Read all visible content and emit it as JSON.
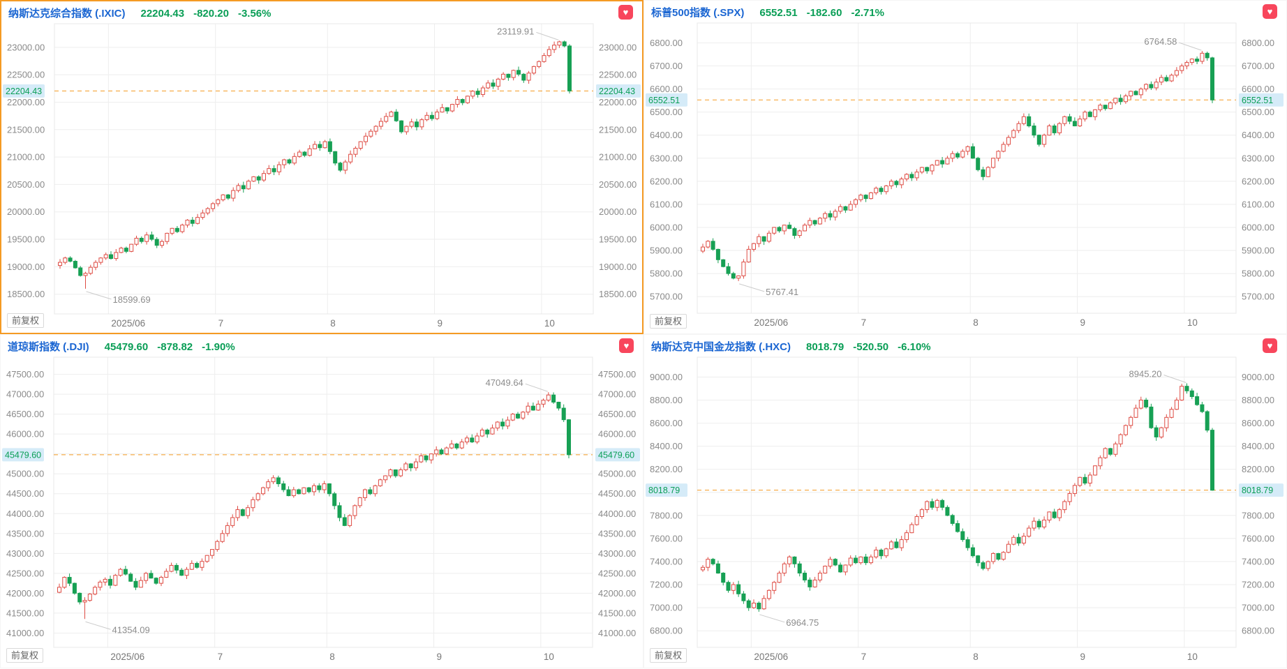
{
  "shared": {
    "adjust_label": "前复权"
  },
  "colors": {
    "title_blue": "#1B66D2",
    "value_green": "#0A9E56",
    "up_red": "#DE4B43",
    "down_green": "#17A054",
    "current_line_orange": "#F59B22",
    "current_label_bg": "#D5EBF8",
    "current_label_text": "#0A9E56",
    "heart_red": "#F8465C",
    "selected_border_orange": "#F59A23",
    "axis_text": "#8A8A8A",
    "grid_line": "#EEEEEE",
    "plot_border": "#E8E8E8",
    "annotation_text": "#8C8C8C",
    "annotation_line": "#CCCCCC",
    "month_label_text": "#777777"
  },
  "panels": [
    {
      "title": "纳斯达克综合指数 (.IXIC)",
      "price": "22204.43",
      "change": "-820.20",
      "change_pct": "-3.56%",
      "selected": true,
      "chart_data": {
        "type": "candlestick",
        "title": "纳斯达克综合指数 (.IXIC)",
        "x_labels": [
          "2025/06",
          "7",
          "8",
          "9",
          "10"
        ],
        "month_start_indices": [
          10,
          31,
          53,
          74,
          95
        ],
        "tick_min": 18500,
        "tick_max": 23000,
        "tick_step": 500,
        "y_range": [
          18140,
          23430
        ],
        "current": 22204.43,
        "high": {
          "index": 98,
          "value": 23119.91,
          "label": "23119.91"
        },
        "low": {
          "index": 5,
          "value": 18599.69,
          "label": "18599.69"
        },
        "closes": [
          19080,
          19160,
          19100,
          18980,
          18840,
          18880,
          18990,
          19080,
          19160,
          19220,
          19150,
          19260,
          19340,
          19280,
          19410,
          19520,
          19460,
          19580,
          19500,
          19390,
          19460,
          19610,
          19700,
          19640,
          19760,
          19850,
          19790,
          19900,
          19980,
          20060,
          20150,
          20220,
          20310,
          20250,
          20390,
          20480,
          20420,
          20560,
          20640,
          20580,
          20700,
          20790,
          20730,
          20860,
          20950,
          20890,
          21010,
          21090,
          21030,
          21150,
          21230,
          21170,
          21280,
          21100,
          20890,
          20760,
          20910,
          21050,
          21160,
          21280,
          21380,
          21470,
          21560,
          21650,
          21740,
          21820,
          21660,
          21460,
          21560,
          21640,
          21550,
          21680,
          21760,
          21700,
          21820,
          21900,
          21840,
          21960,
          22050,
          21990,
          22110,
          22200,
          22140,
          22260,
          22350,
          22290,
          22420,
          22510,
          22450,
          22580,
          22510,
          22400,
          22530,
          22650,
          22740,
          22850,
          22960,
          23040,
          23100,
          23024.63,
          22204.43
        ]
      }
    },
    {
      "title": "标普500指数 (.SPX)",
      "price": "6552.51",
      "change": "-182.60",
      "change_pct": "-2.71%",
      "selected": false,
      "chart_data": {
        "type": "candlestick",
        "title": "标普500指数 (.SPX)",
        "x_labels": [
          "2025/06",
          "7",
          "8",
          "9",
          "10"
        ],
        "month_start_indices": [
          10,
          31,
          53,
          74,
          95
        ],
        "tick_min": 5700,
        "tick_max": 6800,
        "tick_step": 100,
        "y_range": [
          5628,
          6886
        ],
        "current": 6552.51,
        "high": {
          "index": 98,
          "value": 6764.58,
          "label": "6764.58"
        },
        "low": {
          "index": 7,
          "value": 5767.41,
          "label": "5767.41"
        },
        "closes": [
          5915,
          5940,
          5905,
          5860,
          5830,
          5800,
          5780,
          5790,
          5850,
          5905,
          5930,
          5960,
          5940,
          5975,
          6000,
          5985,
          6010,
          5995,
          5965,
          5985,
          6010,
          6030,
          6015,
          6040,
          6060,
          6045,
          6070,
          6090,
          6075,
          6100,
          6120,
          6140,
          6125,
          6150,
          6170,
          6155,
          6180,
          6200,
          6185,
          6210,
          6230,
          6215,
          6240,
          6260,
          6245,
          6270,
          6290,
          6275,
          6300,
          6320,
          6305,
          6330,
          6350,
          6300,
          6250,
          6220,
          6260,
          6300,
          6330,
          6360,
          6390,
          6420,
          6450,
          6480,
          6440,
          6400,
          6360,
          6400,
          6440,
          6410,
          6450,
          6480,
          6460,
          6440,
          6470,
          6500,
          6480,
          6510,
          6530,
          6515,
          6540,
          6560,
          6545,
          6570,
          6590,
          6575,
          6600,
          6620,
          6605,
          6630,
          6650,
          6635,
          6660,
          6680,
          6700,
          6715,
          6730,
          6720,
          6755,
          6735.11,
          6552.51
        ]
      }
    },
    {
      "title": "道琼斯指数 (.DJI)",
      "price": "45479.60",
      "change": "-878.82",
      "change_pct": "-1.90%",
      "selected": false,
      "chart_data": {
        "type": "candlestick",
        "title": "道琼斯指数 (.DJI)",
        "x_labels": [
          "2025/06",
          "7",
          "8",
          "9",
          "10"
        ],
        "month_start_indices": [
          10,
          31,
          53,
          74,
          95
        ],
        "tick_min": 41000,
        "tick_max": 47500,
        "tick_step": 500,
        "y_range": [
          40640,
          47930
        ],
        "current": 45479.6,
        "high": {
          "index": 96,
          "value": 47049.64,
          "label": "47049.64"
        },
        "low": {
          "index": 5,
          "value": 41354.09,
          "label": "41354.09"
        },
        "closes": [
          42150,
          42400,
          42250,
          42000,
          41780,
          41820,
          41980,
          42150,
          42280,
          42350,
          42200,
          42450,
          42600,
          42480,
          42300,
          42150,
          42320,
          42500,
          42380,
          42250,
          42400,
          42550,
          42700,
          42580,
          42450,
          42600,
          42750,
          42650,
          42800,
          42950,
          43100,
          43300,
          43500,
          43700,
          43900,
          44100,
          43950,
          44150,
          44350,
          44500,
          44650,
          44800,
          44900,
          44750,
          44600,
          44450,
          44600,
          44500,
          44650,
          44550,
          44700,
          44600,
          44750,
          44500,
          44200,
          43900,
          43700,
          43950,
          44200,
          44400,
          44600,
          44500,
          44700,
          44850,
          44950,
          45100,
          44950,
          45100,
          45250,
          45150,
          45300,
          45450,
          45350,
          45500,
          45600,
          45500,
          45650,
          45750,
          45650,
          45800,
          45900,
          45800,
          45950,
          46100,
          46000,
          46150,
          46300,
          46200,
          46350,
          46500,
          46400,
          46550,
          46700,
          46600,
          46750,
          46850,
          46980,
          46800,
          46650,
          46358.42,
          45479.6
        ]
      }
    },
    {
      "title": "纳斯达克中国金龙指数 (.HXC)",
      "price": "8018.79",
      "change": "-520.50",
      "change_pct": "-6.10%",
      "selected": false,
      "chart_data": {
        "type": "candlestick",
        "title": "纳斯达克中国金龙指数 (.HXC)",
        "x_labels": [
          "2025/06",
          "7",
          "8",
          "9",
          "10"
        ],
        "month_start_indices": [
          10,
          31,
          53,
          74,
          95
        ],
        "tick_min": 6800,
        "tick_max": 9000,
        "tick_step": 200,
        "y_range": [
          6656,
          9172
        ],
        "current": 8018.79,
        "high": {
          "index": 95,
          "value": 8945.2,
          "label": "8945.20"
        },
        "low": {
          "index": 11,
          "value": 6964.75,
          "label": "6964.75"
        },
        "closes": [
          7350,
          7420,
          7380,
          7300,
          7220,
          7150,
          7200,
          7120,
          7060,
          7000,
          7040,
          6990,
          7080,
          7150,
          7220,
          7300,
          7380,
          7440,
          7380,
          7300,
          7240,
          7180,
          7240,
          7300,
          7360,
          7420,
          7370,
          7310,
          7370,
          7430,
          7390,
          7440,
          7390,
          7440,
          7500,
          7450,
          7510,
          7570,
          7520,
          7590,
          7650,
          7720,
          7790,
          7850,
          7920,
          7870,
          7930,
          7870,
          7800,
          7730,
          7660,
          7590,
          7520,
          7450,
          7390,
          7340,
          7400,
          7470,
          7420,
          7480,
          7550,
          7610,
          7560,
          7620,
          7690,
          7750,
          7700,
          7760,
          7830,
          7780,
          7850,
          7920,
          7990,
          8060,
          8130,
          8080,
          8150,
          8230,
          8300,
          8380,
          8330,
          8420,
          8500,
          8580,
          8650,
          8730,
          8800,
          8740,
          8560,
          8480,
          8560,
          8650,
          8720,
          8800,
          8920,
          8880,
          8830,
          8760,
          8700,
          8539.29,
          8018.79
        ]
      }
    }
  ]
}
